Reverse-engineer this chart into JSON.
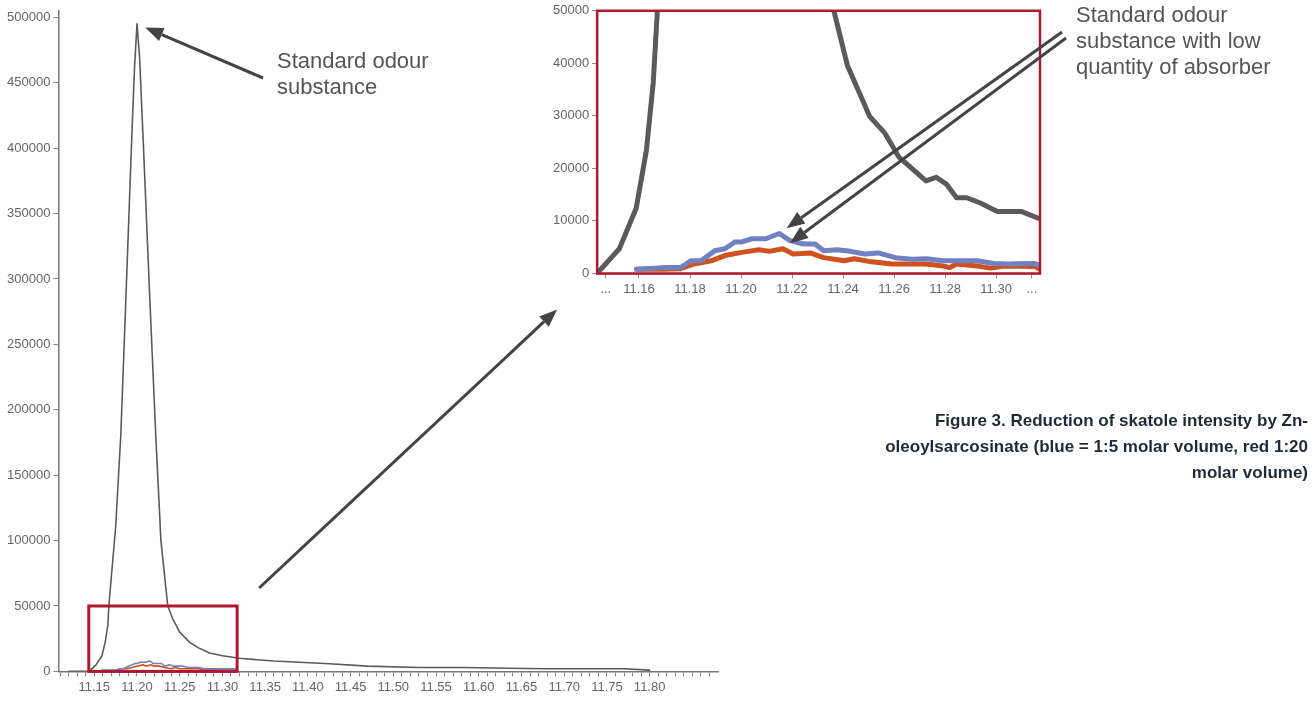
{
  "chart_data": [
    {
      "type": "line",
      "xlim": [
        11.108,
        11.88
      ],
      "ylim": [
        0,
        505000
      ],
      "xticks": [
        {
          "value": 11.11,
          "label": null
        },
        {
          "value": 11.12,
          "label": null
        },
        {
          "value": 11.13,
          "label": null
        },
        {
          "value": 11.14,
          "label": null
        },
        11.15,
        {
          "value": 11.16,
          "label": null
        },
        {
          "value": 11.17,
          "label": null
        },
        {
          "value": 11.18,
          "label": null
        },
        {
          "value": 11.19,
          "label": null
        },
        {
          "value": 11.2,
          "label": "11.20"
        },
        {
          "value": 11.21,
          "label": null
        },
        {
          "value": 11.22,
          "label": null
        },
        {
          "value": 11.23,
          "label": null
        },
        {
          "value": 11.24,
          "label": null
        },
        11.25,
        {
          "value": 11.26,
          "label": null
        },
        {
          "value": 11.27,
          "label": null
        },
        {
          "value": 11.28,
          "label": null
        },
        {
          "value": 11.29,
          "label": null
        },
        {
          "value": 11.3,
          "label": "11.30"
        },
        {
          "value": 11.31,
          "label": null
        },
        {
          "value": 11.32,
          "label": null
        },
        {
          "value": 11.33,
          "label": null
        },
        {
          "value": 11.34,
          "label": null
        },
        11.35,
        {
          "value": 11.36,
          "label": null
        },
        {
          "value": 11.37,
          "label": null
        },
        {
          "value": 11.38,
          "label": null
        },
        {
          "value": 11.39,
          "label": null
        },
        {
          "value": 11.4,
          "label": "11.40"
        },
        {
          "value": 11.41,
          "label": null
        },
        {
          "value": 11.42,
          "label": null
        },
        {
          "value": 11.43,
          "label": null
        },
        {
          "value": 11.44,
          "label": null
        },
        11.45,
        {
          "value": 11.46,
          "label": null
        },
        {
          "value": 11.47,
          "label": null
        },
        {
          "value": 11.48,
          "label": null
        },
        {
          "value": 11.49,
          "label": null
        },
        {
          "value": 11.5,
          "label": "11.50"
        },
        {
          "value": 11.51,
          "label": null
        },
        {
          "value": 11.52,
          "label": null
        },
        {
          "value": 11.53,
          "label": null
        },
        {
          "value": 11.54,
          "label": null
        },
        11.55,
        {
          "value": 11.56,
          "label": null
        },
        {
          "value": 11.57,
          "label": null
        },
        {
          "value": 11.58,
          "label": null
        },
        {
          "value": 11.59,
          "label": null
        },
        {
          "value": 11.6,
          "label": "11.60"
        },
        {
          "value": 11.61,
          "label": null
        },
        {
          "value": 11.62,
          "label": null
        },
        {
          "value": 11.63,
          "label": null
        },
        {
          "value": 11.64,
          "label": null
        },
        11.65,
        {
          "value": 11.66,
          "label": null
        },
        {
          "value": 11.67,
          "label": null
        },
        {
          "value": 11.68,
          "label": null
        },
        {
          "value": 11.69,
          "label": null
        },
        {
          "value": 11.7,
          "label": "11.70"
        },
        {
          "value": 11.71,
          "label": null
        },
        {
          "value": 11.72,
          "label": null
        },
        {
          "value": 11.73,
          "label": null
        },
        {
          "value": 11.74,
          "label": null
        },
        11.75,
        {
          "value": 11.76,
          "label": null
        },
        {
          "value": 11.77,
          "label": null
        },
        {
          "value": 11.78,
          "label": null
        },
        {
          "value": 11.79,
          "label": null
        },
        {
          "value": 11.8,
          "label": "11.80"
        },
        {
          "value": 11.81,
          "label": null
        },
        {
          "value": 11.82,
          "label": null
        },
        {
          "value": 11.83,
          "label": null
        },
        {
          "value": 11.84,
          "label": null
        },
        {
          "value": 11.85,
          "label": null
        },
        {
          "value": 11.86,
          "label": null
        },
        {
          "value": 11.87,
          "label": null
        }
      ],
      "yticks": [
        0,
        50000,
        100000,
        150000,
        200000,
        250000,
        300000,
        350000,
        400000,
        450000,
        500000
      ],
      "series": [
        {
          "color": "#5a5a5a",
          "x": [
            11.12,
            11.144,
            11.152,
            11.159,
            11.163,
            11.166,
            11.167,
            11.175,
            11.181,
            11.187,
            11.194,
            11.197,
            11.2,
            11.203,
            11.207,
            11.215,
            11.222,
            11.228,
            11.236,
            11.242,
            11.25,
            11.262,
            11.272,
            11.285,
            11.3,
            11.32,
            11.36,
            11.42,
            11.47,
            11.53,
            11.58,
            11.68,
            11.77,
            11.8
          ],
          "values": [
            0,
            0,
            5000,
            12000,
            23000,
            36000,
            50000,
            110000,
            180000,
            285000,
            410000,
            460000,
            495000,
            470000,
            410000,
            285000,
            180000,
            100000,
            50000,
            40000,
            30000,
            22000,
            18000,
            14000,
            12000,
            10000,
            8000,
            6000,
            4000,
            3000,
            3000,
            2000,
            2000,
            1000
          ]
        },
        {
          "color": "#7080c0",
          "x": [
            11.159,
            11.17,
            11.176,
            11.18,
            11.184,
            11.19,
            11.194,
            11.198,
            11.2,
            11.204,
            11.21,
            11.215,
            11.219,
            11.224,
            11.229,
            11.232,
            11.238,
            11.243,
            11.248,
            11.254,
            11.26,
            11.267,
            11.272,
            11.279,
            11.286,
            11.292,
            11.299,
            11.305,
            11.315,
            11.317
          ],
          "values": [
            1000,
            1000,
            1000,
            2000,
            2000,
            4000,
            5000,
            6000,
            6000,
            7000,
            7000,
            8000,
            6000,
            6000,
            6000,
            4000,
            5000,
            4000,
            4000,
            4000,
            3000,
            3000,
            3000,
            2000,
            2000,
            2000,
            2000,
            2000,
            2000,
            1000
          ]
        },
        {
          "color": "#d0501e",
          "x": [
            11.176,
            11.182,
            11.188,
            11.194,
            11.2,
            11.207,
            11.211,
            11.216,
            11.22,
            11.227,
            11.232,
            11.24,
            11.244,
            11.251,
            11.259,
            11.272,
            11.279,
            11.282,
            11.284,
            11.292,
            11.298,
            11.303,
            11.315,
            11.317
          ],
          "values": [
            1000,
            2000,
            2000,
            3000,
            4000,
            5000,
            4000,
            5000,
            4000,
            4000,
            3000,
            2000,
            3000,
            2000,
            2000,
            2000,
            1000,
            1000,
            2000,
            1000,
            1000,
            1000,
            1000,
            1000
          ]
        }
      ],
      "annotations": [
        "Standard odour substance",
        "Figure 3. Reduction of skatole intensity by Zn-oleoylsarcosinate (blue = 1:5 molar volume, red 1:20 molar volume)"
      ]
    },
    {
      "type": "line",
      "xlim": [
        11.1436,
        11.3172
      ],
      "ylim": [
        0,
        50000
      ],
      "xticks": [
        {
          "value": 11.147,
          "label": "..."
        },
        11.16,
        11.18,
        {
          "value": 11.2,
          "label": "11.20"
        },
        11.22,
        11.24,
        11.26,
        11.28,
        {
          "value": 11.3,
          "label": "11.30"
        },
        {
          "value": 11.314,
          "label": "..."
        }
      ],
      "yticks": [
        0,
        10000,
        20000,
        30000,
        40000,
        50000
      ],
      "series": [
        {
          "color": "#5a5a5a",
          "x": [
            11.1436,
            11.1523,
            11.1589,
            11.1629,
            11.1656,
            11.1672,
            11.2,
            11.2364,
            11.2417,
            11.2504,
            11.2564,
            11.2618,
            11.2725,
            11.2765,
            11.2805,
            11.2845,
            11.2885,
            11.2938,
            11.3005,
            11.3098,
            11.3165
          ],
          "values": [
            0,
            4700,
            12400,
            23400,
            36400,
            50000,
            null,
            50000,
            39600,
            29900,
            26700,
            22200,
            17600,
            18300,
            17000,
            14400,
            14400,
            13400,
            11800,
            11800,
            10500
          ]
        },
        {
          "color": "#7080c0",
          "x": [
            11.159,
            11.1696,
            11.1763,
            11.1803,
            11.1843,
            11.1897,
            11.1937,
            11.1977,
            11.2003,
            11.2043,
            11.2097,
            11.215,
            11.219,
            11.2244,
            11.229,
            11.2324,
            11.2377,
            11.243,
            11.2484,
            11.2538,
            11.2605,
            11.2671,
            11.2725,
            11.2792,
            11.2858,
            11.2925,
            11.2992,
            11.3046,
            11.3152,
            11.3172
          ],
          "values": [
            800,
            1100,
            1100,
            2400,
            2400,
            4300,
            4700,
            6000,
            6000,
            6600,
            6600,
            7600,
            6300,
            5600,
            5600,
            4300,
            4500,
            4200,
            3700,
            3900,
            3000,
            2700,
            2800,
            2400,
            2400,
            2400,
            1900,
            1800,
            1900,
            1400
          ]
        },
        {
          "color": "#d0501e",
          "x": [
            11.159,
            11.1696,
            11.1763,
            11.1816,
            11.1883,
            11.1937,
            11.2003,
            11.207,
            11.211,
            11.2164,
            11.2204,
            11.2271,
            11.2324,
            11.2404,
            11.2444,
            11.2511,
            11.2591,
            11.2725,
            11.2792,
            11.2818,
            11.2845,
            11.2925,
            11.2978,
            11.3032,
            11.3152,
            11.3172
          ],
          "values": [
            800,
            800,
            900,
            1800,
            2400,
            3400,
            4000,
            4500,
            4200,
            4700,
            3700,
            3900,
            3000,
            2400,
            2800,
            2200,
            1800,
            1800,
            1400,
            1100,
            1800,
            1400,
            1000,
            1400,
            1300,
            800
          ]
        }
      ],
      "annotations": [
        "Standard odour substance with low quantity of absorber"
      ]
    }
  ]
}
